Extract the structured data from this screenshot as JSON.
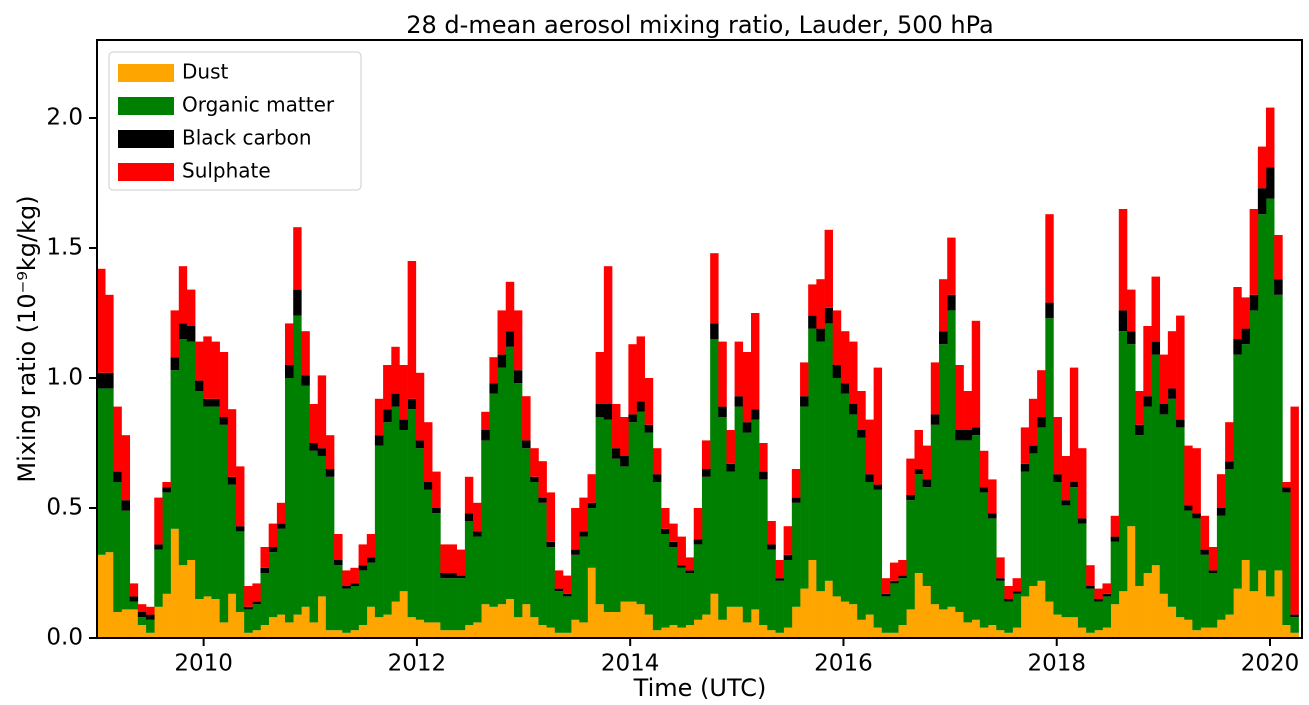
{
  "chart_data": {
    "type": "stacked_bar",
    "title": "28 d-mean aerosol mixing ratio, Lauder, 500 hPa",
    "xlabel": "Time (UTC)",
    "ylabel": "Mixing ratio (10⁻⁹kg/kg)",
    "xlim": [
      2009.0,
      2020.3
    ],
    "xticks": [
      2010,
      2012,
      2014,
      2016,
      2018,
      2020
    ],
    "ylim": [
      0,
      2.3
    ],
    "yticks": [
      {
        "value": 0,
        "label": "0.0"
      },
      0.5,
      {
        "value": 1,
        "label": "1.0"
      },
      1.5,
      {
        "value": 2,
        "label": "2.0"
      }
    ],
    "legend": "upper left",
    "x": [
      2009.0,
      2009.077,
      2009.153,
      2009.23,
      2009.307,
      2009.383,
      2009.46,
      2009.537,
      2009.613,
      2009.69,
      2009.767,
      2009.843,
      2009.92,
      2009.997,
      2010.073,
      2010.15,
      2010.227,
      2010.303,
      2010.38,
      2010.457,
      2010.533,
      2010.61,
      2010.687,
      2010.763,
      2010.84,
      2010.916,
      2010.993,
      2011.07,
      2011.146,
      2011.223,
      2011.3,
      2011.376,
      2011.453,
      2011.53,
      2011.606,
      2011.683,
      2011.76,
      2011.836,
      2011.913,
      2011.99,
      2012.066,
      2012.143,
      2012.22,
      2012.296,
      2012.373,
      2012.45,
      2012.526,
      2012.603,
      2012.68,
      2012.756,
      2012.833,
      2012.91,
      2012.986,
      2013.063,
      2013.14,
      2013.216,
      2013.293,
      2013.37,
      2013.446,
      2013.523,
      2013.6,
      2013.676,
      2013.753,
      2013.83,
      2013.906,
      2013.983,
      2014.06,
      2014.136,
      2014.213,
      2014.29,
      2014.366,
      2014.443,
      2014.52,
      2014.596,
      2014.673,
      2014.75,
      2014.826,
      2014.903,
      2014.979,
      2015.056,
      2015.133,
      2015.209,
      2015.286,
      2015.363,
      2015.439,
      2015.516,
      2015.593,
      2015.669,
      2015.746,
      2015.823,
      2015.899,
      2015.976,
      2016.053,
      2016.129,
      2016.206,
      2016.283,
      2016.359,
      2016.436,
      2016.513,
      2016.589,
      2016.666,
      2016.743,
      2016.819,
      2016.896,
      2016.973,
      2017.049,
      2017.126,
      2017.203,
      2017.279,
      2017.356,
      2017.433,
      2017.509,
      2017.586,
      2017.663,
      2017.739,
      2017.816,
      2017.893,
      2017.969,
      2018.046,
      2018.123,
      2018.199,
      2018.276,
      2018.353,
      2018.429,
      2018.506,
      2018.582,
      2018.659,
      2018.736,
      2018.812,
      2018.889,
      2018.966,
      2019.042,
      2019.119,
      2019.196,
      2019.272,
      2019.349,
      2019.426,
      2019.502,
      2019.579,
      2019.656,
      2019.732,
      2019.809,
      2019.886,
      2019.962,
      2020.039,
      2020.116,
      2020.192
    ],
    "series": [
      {
        "name": "Dust",
        "color": "#ffa500",
        "values": [
          0.32,
          0.33,
          0.1,
          0.11,
          0.11,
          0.05,
          0.02,
          0.12,
          0.17,
          0.42,
          0.28,
          0.3,
          0.15,
          0.16,
          0.15,
          0.06,
          0.17,
          0.1,
          0.02,
          0.03,
          0.05,
          0.08,
          0.09,
          0.06,
          0.09,
          0.12,
          0.06,
          0.16,
          0.03,
          0.03,
          0.02,
          0.03,
          0.05,
          0.12,
          0.08,
          0.09,
          0.14,
          0.18,
          0.08,
          0.07,
          0.06,
          0.06,
          0.03,
          0.03,
          0.03,
          0.05,
          0.06,
          0.13,
          0.12,
          0.13,
          0.15,
          0.08,
          0.13,
          0.08,
          0.05,
          0.04,
          0.02,
          0.02,
          0.07,
          0.06,
          0.27,
          0.13,
          0.1,
          0.1,
          0.14,
          0.14,
          0.13,
          0.09,
          0.03,
          0.04,
          0.05,
          0.04,
          0.05,
          0.07,
          0.09,
          0.17,
          0.07,
          0.12,
          0.12,
          0.06,
          0.11,
          0.05,
          0.03,
          0.02,
          0.04,
          0.12,
          0.19,
          0.3,
          0.18,
          0.22,
          0.16,
          0.14,
          0.13,
          0.07,
          0.09,
          0.04,
          0.02,
          0.02,
          0.05,
          0.11,
          0.25,
          0.2,
          0.13,
          0.11,
          0.12,
          0.1,
          0.06,
          0.07,
          0.04,
          0.05,
          0.03,
          0.02,
          0.04,
          0.16,
          0.2,
          0.22,
          0.14,
          0.09,
          0.08,
          0.08,
          0.04,
          0.02,
          0.03,
          0.04,
          0.13,
          0.18,
          0.43,
          0.2,
          0.25,
          0.28,
          0.17,
          0.12,
          0.08,
          0.07,
          0.03,
          0.04,
          0.04,
          0.07,
          0.09,
          0.19,
          0.3,
          0.18,
          0.26,
          0.16,
          0.26,
          0.05,
          0.02
        ]
      },
      {
        "name": "Organic matter",
        "color": "#008000",
        "values": [
          0.64,
          0.63,
          0.5,
          0.38,
          0.03,
          0.03,
          0.05,
          0.22,
          0.39,
          0.61,
          0.87,
          0.84,
          0.8,
          0.73,
          0.74,
          0.76,
          0.42,
          0.31,
          0.09,
          0.1,
          0.2,
          0.25,
          0.33,
          0.94,
          1.15,
          0.85,
          0.66,
          0.54,
          0.59,
          0.25,
          0.17,
          0.17,
          0.21,
          0.17,
          0.66,
          0.74,
          0.75,
          0.62,
          0.8,
          0.66,
          0.51,
          0.42,
          0.2,
          0.2,
          0.2,
          0.4,
          0.33,
          0.63,
          0.82,
          0.91,
          0.97,
          0.9,
          0.6,
          0.52,
          0.47,
          0.31,
          0.16,
          0.14,
          0.25,
          0.33,
          0.23,
          0.72,
          0.74,
          0.59,
          0.52,
          0.69,
          0.74,
          0.7,
          0.57,
          0.36,
          0.3,
          0.23,
          0.2,
          0.29,
          0.53,
          0.98,
          0.78,
          0.52,
          0.77,
          0.73,
          0.73,
          0.56,
          0.31,
          0.2,
          0.26,
          0.4,
          0.7,
          0.89,
          0.96,
          0.99,
          0.84,
          0.8,
          0.73,
          0.7,
          0.51,
          0.53,
          0.14,
          0.19,
          0.18,
          0.42,
          0.38,
          0.38,
          0.69,
          1.02,
          1.14,
          0.66,
          0.7,
          0.71,
          0.52,
          0.41,
          0.19,
          0.12,
          0.13,
          0.48,
          0.51,
          0.59,
          1.09,
          0.51,
          0.43,
          0.5,
          0.4,
          0.17,
          0.11,
          0.12,
          0.24,
          1.0,
          0.7,
          0.58,
          0.64,
          0.81,
          0.69,
          0.8,
          0.73,
          0.42,
          0.43,
          0.28,
          0.21,
          0.4,
          0.56,
          0.9,
          0.83,
          1.08,
          1.37,
          1.53,
          1.06,
          0.51,
          0.06
        ]
      },
      {
        "name": "Black carbon",
        "color": "#000000",
        "values": [
          0.06,
          0.06,
          0.04,
          0.04,
          0.02,
          0.02,
          0.02,
          0.02,
          0.02,
          0.05,
          0.06,
          0.06,
          0.04,
          0.03,
          0.03,
          0.03,
          0.03,
          0.02,
          0.01,
          0.01,
          0.02,
          0.02,
          0.02,
          0.05,
          0.1,
          0.04,
          0.03,
          0.03,
          0.03,
          0.02,
          0.01,
          0.01,
          0.02,
          0.02,
          0.04,
          0.05,
          0.05,
          0.04,
          0.04,
          0.03,
          0.03,
          0.02,
          0.02,
          0.02,
          0.01,
          0.03,
          0.02,
          0.04,
          0.04,
          0.05,
          0.06,
          0.05,
          0.03,
          0.02,
          0.02,
          0.02,
          0.01,
          0.01,
          0.02,
          0.02,
          0.02,
          0.05,
          0.06,
          0.04,
          0.04,
          0.03,
          0.04,
          0.03,
          0.03,
          0.02,
          0.02,
          0.01,
          0.01,
          0.02,
          0.03,
          0.06,
          0.04,
          0.03,
          0.04,
          0.04,
          0.04,
          0.03,
          0.02,
          0.01,
          0.02,
          0.02,
          0.04,
          0.05,
          0.05,
          0.06,
          0.05,
          0.04,
          0.04,
          0.03,
          0.03,
          0.02,
          0.01,
          0.01,
          0.01,
          0.02,
          0.02,
          0.03,
          0.04,
          0.05,
          0.06,
          0.04,
          0.04,
          0.03,
          0.02,
          0.02,
          0.01,
          0.01,
          0.01,
          0.03,
          0.03,
          0.04,
          0.06,
          0.03,
          0.02,
          0.02,
          0.02,
          0.01,
          0.01,
          0.01,
          0.02,
          0.08,
          0.05,
          0.04,
          0.04,
          0.05,
          0.04,
          0.04,
          0.03,
          0.02,
          0.02,
          0.02,
          0.01,
          0.03,
          0.03,
          0.06,
          0.06,
          0.06,
          0.1,
          0.12,
          0.06,
          0.02,
          0.01
        ]
      },
      {
        "name": "Sulphate",
        "color": "#ff0000",
        "values": [
          0.4,
          0.3,
          0.25,
          0.25,
          0.05,
          0.03,
          0.03,
          0.18,
          0.02,
          0.18,
          0.22,
          0.14,
          0.15,
          0.24,
          0.22,
          0.25,
          0.26,
          0.23,
          0.08,
          0.07,
          0.08,
          0.09,
          0.08,
          0.16,
          0.24,
          0.17,
          0.15,
          0.28,
          0.13,
          0.1,
          0.06,
          0.06,
          0.08,
          0.09,
          0.14,
          0.17,
          0.18,
          0.21,
          0.53,
          0.26,
          0.23,
          0.14,
          0.11,
          0.11,
          0.1,
          0.14,
          0.11,
          0.07,
          0.1,
          0.17,
          0.19,
          0.23,
          0.17,
          0.11,
          0.14,
          0.19,
          0.07,
          0.07,
          0.16,
          0.13,
          0.11,
          0.2,
          0.53,
          0.17,
          0.15,
          0.27,
          0.25,
          0.18,
          0.1,
          0.08,
          0.07,
          0.11,
          0.05,
          0.12,
          0.11,
          0.27,
          0.25,
          0.13,
          0.21,
          0.27,
          0.37,
          0.11,
          0.09,
          0.07,
          0.11,
          0.11,
          0.13,
          0.12,
          0.19,
          0.3,
          0.21,
          0.2,
          0.24,
          0.15,
          0.21,
          0.45,
          0.06,
          0.07,
          0.06,
          0.14,
          0.15,
          0.13,
          0.2,
          0.2,
          0.22,
          0.25,
          0.15,
          0.41,
          0.14,
          0.13,
          0.08,
          0.05,
          0.05,
          0.14,
          0.18,
          0.18,
          0.34,
          0.22,
          0.17,
          0.44,
          0.27,
          0.08,
          0.04,
          0.04,
          0.08,
          0.39,
          0.16,
          0.13,
          0.27,
          0.25,
          0.19,
          0.22,
          0.4,
          0.23,
          0.25,
          0.13,
          0.09,
          0.13,
          0.15,
          0.2,
          0.12,
          0.33,
          0.16,
          0.23,
          0.17,
          0.02,
          0.8
        ]
      }
    ]
  }
}
